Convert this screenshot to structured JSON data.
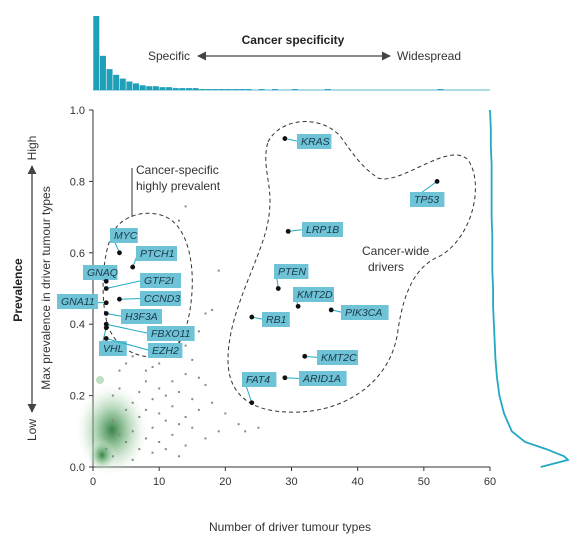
{
  "colors": {
    "gene_box": "#6fc3d6",
    "accent_line": "#21a9c4",
    "histogram": "#1f9fb8",
    "density_green": "#3b8a4b",
    "point": "#111111",
    "scatter_grey": "#888888"
  },
  "top_panel": {
    "title": "Cancer specificity",
    "left_label": "Specific",
    "right_label": "Widespread"
  },
  "left_panel": {
    "title": "Prevalence",
    "high_label": "High",
    "low_label": "Low"
  },
  "annotations": {
    "cancer_specific": [
      "Cancer-specific",
      "highly prevalent"
    ],
    "cancer_wide": [
      "Cancer-wide",
      "drivers"
    ]
  },
  "chart_data": {
    "type": "scatter",
    "xlabel": "Number of driver tumour types",
    "ylabel": "Max prevalence in driver tumour types",
    "xlim": [
      0,
      60
    ],
    "ylim": [
      0,
      1.0
    ],
    "x_ticks": [
      "0",
      "10",
      "20",
      "30",
      "40",
      "50",
      "60"
    ],
    "y_ticks": [
      "0.0",
      "0.2",
      "0.4",
      "0.6",
      "0.8",
      "1.0"
    ],
    "grid": false,
    "labeled_points": [
      {
        "gene": "KRAS",
        "x": 29,
        "y": 0.92
      },
      {
        "gene": "TP53",
        "x": 52,
        "y": 0.8
      },
      {
        "gene": "LRP1B",
        "x": 29.5,
        "y": 0.66
      },
      {
        "gene": "PTEN",
        "x": 28,
        "y": 0.5
      },
      {
        "gene": "KMT2D",
        "x": 31,
        "y": 0.45
      },
      {
        "gene": "PIK3CA",
        "x": 36,
        "y": 0.44
      },
      {
        "gene": "RB1",
        "x": 24,
        "y": 0.42
      },
      {
        "gene": "KMT2C",
        "x": 32,
        "y": 0.31
      },
      {
        "gene": "ARID1A",
        "x": 29,
        "y": 0.25
      },
      {
        "gene": "FAT4",
        "x": 24,
        "y": 0.18
      },
      {
        "gene": "MYC",
        "x": 4,
        "y": 0.6
      },
      {
        "gene": "PTCH1",
        "x": 6,
        "y": 0.56
      },
      {
        "gene": "GNAQ",
        "x": 2,
        "y": 0.52
      },
      {
        "gene": "GTF2I",
        "x": 2,
        "y": 0.5
      },
      {
        "gene": "CCND3",
        "x": 4,
        "y": 0.47
      },
      {
        "gene": "GNA11",
        "x": 2,
        "y": 0.46
      },
      {
        "gene": "H3F3A",
        "x": 2,
        "y": 0.43
      },
      {
        "gene": "FBXO11",
        "x": 2,
        "y": 0.4
      },
      {
        "gene": "VHL",
        "x": 2,
        "y": 0.39
      },
      {
        "gene": "EZH2",
        "x": 2,
        "y": 0.36
      }
    ],
    "background_points": [
      [
        14,
        0.73
      ],
      [
        13,
        0.69
      ],
      [
        19,
        0.55
      ],
      [
        18,
        0.44
      ],
      [
        17,
        0.43
      ],
      [
        16,
        0.38
      ],
      [
        13,
        0.35
      ],
      [
        14,
        0.34
      ],
      [
        11,
        0.33
      ],
      [
        12,
        0.31
      ],
      [
        15,
        0.3
      ],
      [
        10,
        0.29
      ],
      [
        9,
        0.28
      ],
      [
        14,
        0.26
      ],
      [
        16,
        0.25
      ],
      [
        12,
        0.24
      ],
      [
        8,
        0.24
      ],
      [
        17,
        0.23
      ],
      [
        10,
        0.22
      ],
      [
        13,
        0.21
      ],
      [
        7,
        0.21
      ],
      [
        11,
        0.2
      ],
      [
        15,
        0.19
      ],
      [
        9,
        0.19
      ],
      [
        18,
        0.18
      ],
      [
        6,
        0.18
      ],
      [
        12,
        0.17
      ],
      [
        16,
        0.16
      ],
      [
        8,
        0.16
      ],
      [
        20,
        0.15
      ],
      [
        10,
        0.15
      ],
      [
        14,
        0.14
      ],
      [
        22,
        0.12
      ],
      [
        7,
        0.14
      ],
      [
        11,
        0.13
      ],
      [
        13,
        0.12
      ],
      [
        25,
        0.11
      ],
      [
        9,
        0.11
      ],
      [
        15,
        0.11
      ],
      [
        19,
        0.1
      ],
      [
        6,
        0.1
      ],
      [
        12,
        0.09
      ],
      [
        8,
        0.08
      ],
      [
        17,
        0.08
      ],
      [
        10,
        0.07
      ],
      [
        5,
        0.07
      ],
      [
        14,
        0.06
      ],
      [
        7,
        0.05
      ],
      [
        11,
        0.05
      ],
      [
        9,
        0.04
      ],
      [
        13,
        0.03
      ],
      [
        6,
        0.02
      ],
      [
        4,
        0.27
      ],
      [
        5,
        0.29
      ],
      [
        3,
        0.33
      ],
      [
        6,
        0.31
      ],
      [
        8,
        0.27
      ],
      [
        4,
        0.22
      ],
      [
        3,
        0.2
      ],
      [
        5,
        0.16
      ],
      [
        3,
        0.13
      ],
      [
        4,
        0.09
      ],
      [
        2,
        0.05
      ],
      [
        3,
        0.03
      ],
      [
        23,
        0.1
      ]
    ],
    "top_histogram": {
      "x_bin_width": 1,
      "counts": [
        78,
        36,
        22,
        16,
        12,
        9,
        7,
        5,
        4,
        4,
        3,
        3,
        2,
        2,
        2,
        2,
        1,
        1,
        1,
        1,
        1,
        1,
        1,
        1,
        0,
        1,
        0,
        1,
        0,
        0,
        1,
        0,
        0,
        0,
        0,
        1,
        0,
        0,
        0,
        0,
        0,
        0,
        0,
        0,
        0,
        0,
        0,
        0,
        0,
        0,
        0,
        0,
        1
      ]
    },
    "right_density": {
      "y": [
        1.0,
        0.95,
        0.9,
        0.85,
        0.8,
        0.75,
        0.7,
        0.65,
        0.6,
        0.55,
        0.5,
        0.45,
        0.4,
        0.35,
        0.3,
        0.25,
        0.2,
        0.15,
        0.1,
        0.07,
        0.05,
        0.03,
        0.02,
        0.0
      ],
      "density": [
        0.0,
        0.01,
        0.01,
        0.02,
        0.02,
        0.02,
        0.02,
        0.03,
        0.03,
        0.03,
        0.04,
        0.04,
        0.05,
        0.06,
        0.07,
        0.09,
        0.12,
        0.18,
        0.28,
        0.45,
        0.72,
        0.95,
        1.0,
        0.65
      ]
    }
  }
}
